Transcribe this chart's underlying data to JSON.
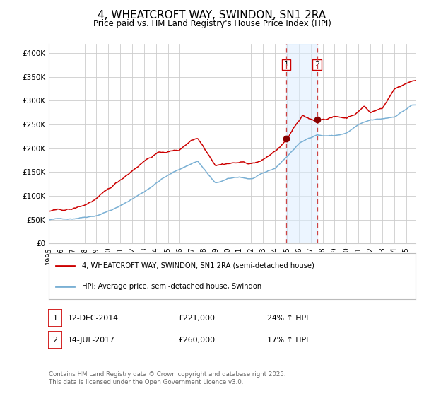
{
  "title": "4, WHEATCROFT WAY, SWINDON, SN1 2RA",
  "subtitle": "Price paid vs. HM Land Registry's House Price Index (HPI)",
  "title_fontsize": 11,
  "subtitle_fontsize": 8.5,
  "ylabel_vals": [
    0,
    50000,
    100000,
    150000,
    200000,
    250000,
    300000,
    350000,
    400000
  ],
  "ylabel_labels": [
    "£0",
    "£50K",
    "£100K",
    "£150K",
    "£200K",
    "£250K",
    "£300K",
    "£350K",
    "£400K"
  ],
  "ylim": [
    0,
    420000
  ],
  "xmin": 1995.0,
  "xmax": 2025.8,
  "red_line_color": "#cc0000",
  "blue_line_color": "#7ab0d4",
  "marker_color": "#880000",
  "vline1_x": 2014.95,
  "vline2_x": 2017.54,
  "shade_color": "#ddeeff",
  "shade_alpha": 0.55,
  "point1_x": 2014.95,
  "point1_y": 221000,
  "point2_x": 2017.54,
  "point2_y": 260000,
  "legend_red_label": "4, WHEATCROFT WAY, SWINDON, SN1 2RA (semi-detached house)",
  "legend_blue_label": "HPI: Average price, semi-detached house, Swindon",
  "table_row1": [
    "1",
    "12-DEC-2014",
    "£221,000",
    "24% ↑ HPI"
  ],
  "table_row2": [
    "2",
    "14-JUL-2017",
    "£260,000",
    "17% ↑ HPI"
  ],
  "footer": "Contains HM Land Registry data © Crown copyright and database right 2025.\nThis data is licensed under the Open Government Licence v3.0.",
  "bg_color": "#ffffff",
  "grid_color": "#cccccc",
  "xtick_years": [
    1995,
    1996,
    1997,
    1998,
    1999,
    2000,
    2001,
    2002,
    2003,
    2004,
    2005,
    2006,
    2007,
    2008,
    2009,
    2010,
    2011,
    2012,
    2013,
    2014,
    2015,
    2016,
    2017,
    2018,
    2019,
    2020,
    2021,
    2022,
    2023,
    2024,
    2025
  ]
}
